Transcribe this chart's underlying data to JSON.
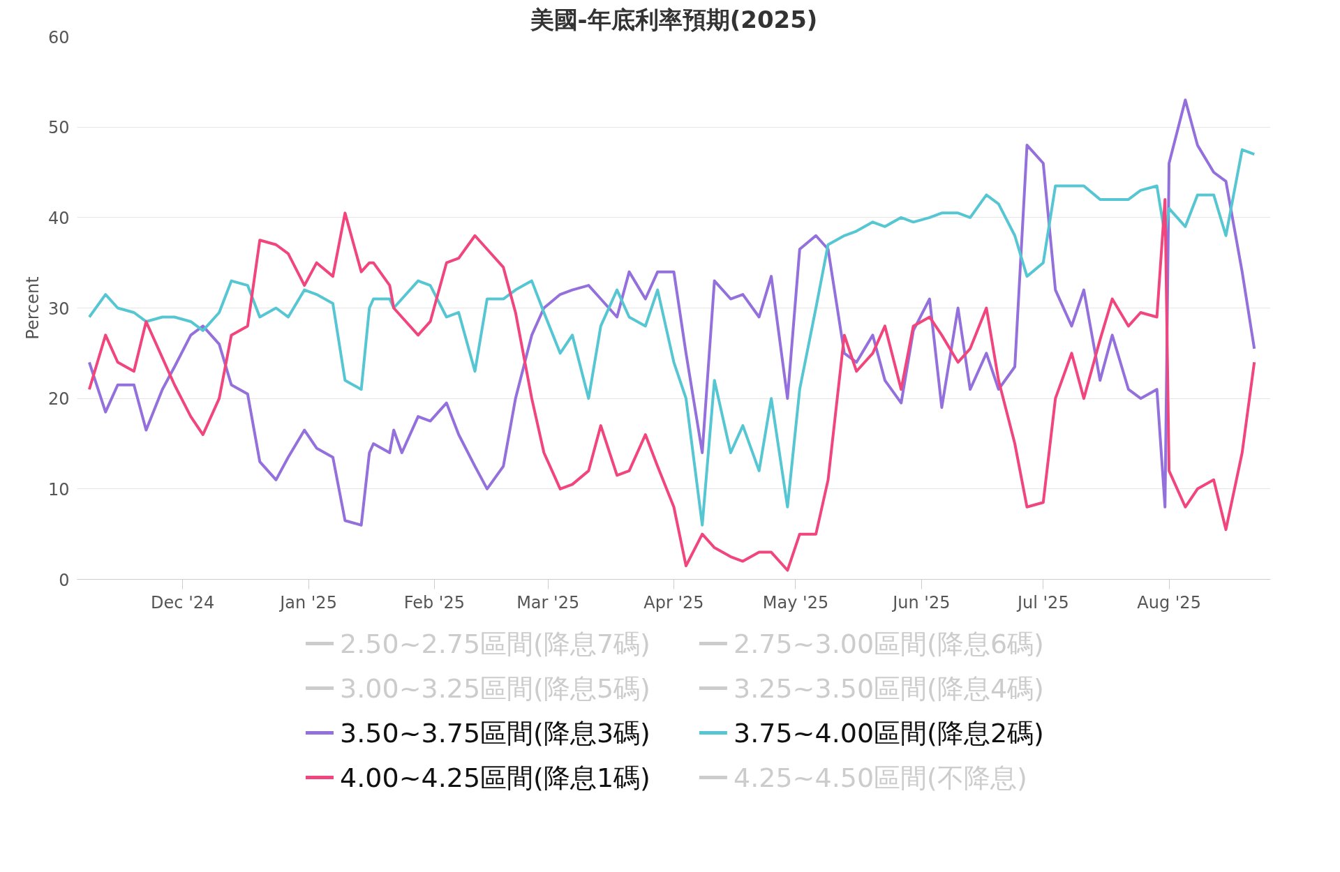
{
  "chart_data": {
    "type": "line",
    "title": "美國-年底利率預期(2025)",
    "ylabel": "Percent",
    "x": [
      "2024-11-08",
      "2024-11-12",
      "2024-11-15",
      "2024-11-19",
      "2024-11-22",
      "2024-11-26",
      "2024-11-29",
      "2024-12-03",
      "2024-12-06",
      "2024-12-10",
      "2024-12-13",
      "2024-12-17",
      "2024-12-20",
      "2024-12-24",
      "2024-12-27",
      "2024-12-31",
      "2025-01-03",
      "2025-01-07",
      "2025-01-10",
      "2025-01-14",
      "2025-01-16",
      "2025-01-17",
      "2025-01-21",
      "2025-01-22",
      "2025-01-24",
      "2025-01-28",
      "2025-01-31",
      "2025-02-04",
      "2025-02-07",
      "2025-02-11",
      "2025-02-14",
      "2025-02-18",
      "2025-02-21",
      "2025-02-25",
      "2025-02-28",
      "2025-03-04",
      "2025-03-07",
      "2025-03-11",
      "2025-03-14",
      "2025-03-18",
      "2025-03-21",
      "2025-03-25",
      "2025-03-28",
      "2025-04-01",
      "2025-04-04",
      "2025-04-08",
      "2025-04-11",
      "2025-04-15",
      "2025-04-18",
      "2025-04-22",
      "2025-04-25",
      "2025-04-29",
      "2025-05-02",
      "2025-05-06",
      "2025-05-09",
      "2025-05-13",
      "2025-05-16",
      "2025-05-20",
      "2025-05-23",
      "2025-05-27",
      "2025-05-30",
      "2025-06-03",
      "2025-06-06",
      "2025-06-10",
      "2025-06-13",
      "2025-06-17",
      "2025-06-20",
      "2025-06-24",
      "2025-06-27",
      "2025-07-01",
      "2025-07-04",
      "2025-07-08",
      "2025-07-11",
      "2025-07-15",
      "2025-07-18",
      "2025-07-22",
      "2025-07-25",
      "2025-07-29",
      "2025-07-31",
      "2025-08-01",
      "2025-08-05",
      "2025-08-08",
      "2025-08-12",
      "2025-08-15",
      "2025-08-19",
      "2025-08-22"
    ],
    "series": [
      {
        "name": "2.50~2.75區間(降息7碼)",
        "color": "#cccccc",
        "values": [
          null,
          null,
          null,
          null,
          null,
          null,
          null,
          null,
          null,
          null,
          null,
          null,
          null,
          null,
          null,
          null,
          null,
          null,
          null,
          null,
          null,
          null,
          null,
          null,
          null,
          null,
          null,
          null,
          null,
          null,
          null,
          null,
          null,
          null,
          null,
          null,
          null,
          null,
          null,
          null,
          null,
          null,
          null,
          null,
          null,
          null,
          null,
          null,
          null,
          null,
          null,
          null,
          null,
          null,
          null,
          null,
          null,
          null,
          null,
          null,
          null,
          null,
          null,
          null,
          null,
          null,
          null,
          null,
          null,
          null,
          null,
          null,
          null,
          null,
          null,
          null,
          null,
          null,
          null,
          null,
          null,
          null,
          null,
          null,
          null,
          null
        ]
      },
      {
        "name": "2.75~3.00區間(降息6碼)",
        "color": "#cccccc",
        "values": [
          null,
          null,
          null,
          null,
          null,
          null,
          null,
          null,
          null,
          null,
          null,
          null,
          null,
          null,
          null,
          null,
          null,
          null,
          null,
          null,
          null,
          null,
          null,
          null,
          null,
          null,
          null,
          null,
          null,
          null,
          null,
          null,
          null,
          null,
          null,
          null,
          null,
          null,
          null,
          null,
          null,
          null,
          null,
          null,
          null,
          null,
          null,
          null,
          null,
          null,
          null,
          null,
          null,
          null,
          null,
          null,
          null,
          null,
          null,
          null,
          null,
          null,
          null,
          null,
          null,
          null,
          null,
          null,
          null,
          null,
          null,
          null,
          null,
          null,
          null,
          null,
          null,
          null,
          null,
          null,
          null,
          null,
          null,
          null,
          null,
          null
        ]
      },
      {
        "name": "3.00~3.25區間(降息5碼)",
        "color": "#cccccc",
        "values": [
          null,
          null,
          null,
          null,
          null,
          null,
          null,
          null,
          null,
          null,
          null,
          null,
          null,
          null,
          null,
          null,
          null,
          null,
          null,
          null,
          null,
          null,
          null,
          null,
          null,
          null,
          null,
          null,
          null,
          null,
          null,
          null,
          null,
          null,
          null,
          null,
          null,
          null,
          null,
          null,
          null,
          null,
          null,
          null,
          null,
          null,
          null,
          null,
          null,
          null,
          null,
          null,
          null,
          null,
          null,
          null,
          null,
          null,
          null,
          null,
          null,
          null,
          null,
          null,
          null,
          null,
          null,
          null,
          null,
          null,
          null,
          null,
          null,
          null,
          null,
          null,
          null,
          null,
          null,
          null,
          null,
          null,
          null,
          null,
          null,
          null
        ]
      },
      {
        "name": "3.25~3.50區間(降息4碼)",
        "color": "#cccccc",
        "values": [
          null,
          null,
          null,
          null,
          null,
          null,
          null,
          null,
          null,
          null,
          null,
          null,
          null,
          null,
          null,
          null,
          null,
          null,
          null,
          null,
          null,
          null,
          null,
          null,
          null,
          null,
          null,
          null,
          null,
          null,
          null,
          null,
          null,
          null,
          null,
          null,
          null,
          null,
          null,
          null,
          null,
          null,
          null,
          null,
          null,
          null,
          null,
          null,
          null,
          null,
          null,
          null,
          null,
          null,
          null,
          null,
          null,
          null,
          null,
          null,
          null,
          null,
          null,
          null,
          null,
          null,
          null,
          null,
          null,
          null,
          null,
          null,
          null,
          null,
          null,
          null,
          null,
          null,
          null,
          null,
          null,
          null,
          null,
          null,
          null,
          null
        ]
      },
      {
        "name": "3.50~3.75區間(降息3碼)",
        "color": "#9370db",
        "values": [
          24,
          18.5,
          21.5,
          21.5,
          16.5,
          21,
          23.5,
          27,
          28,
          26,
          21.5,
          20.5,
          13,
          11,
          13.5,
          16.5,
          14.5,
          13.5,
          6.5,
          6,
          14,
          15,
          14,
          16.5,
          14,
          18,
          17.5,
          19.5,
          16,
          12.5,
          10,
          12.5,
          20,
          27,
          30,
          31.5,
          32,
          32.5,
          31,
          29,
          34,
          31,
          34,
          34,
          25,
          14,
          33,
          31,
          31.5,
          29,
          33.5,
          20,
          36.5,
          38,
          36.5,
          25,
          24,
          27,
          22,
          19.5,
          27.5,
          31,
          19,
          30,
          21,
          25,
          21,
          23.5,
          48,
          46,
          32,
          28,
          32,
          22,
          27,
          21,
          20,
          21,
          8,
          46,
          53,
          48,
          45,
          44,
          34,
          25.5
        ]
      },
      {
        "name": "3.75~4.00區間(降息2碼)",
        "color": "#55c6d2",
        "values": [
          29,
          31.5,
          30,
          29.5,
          28.5,
          29,
          29,
          28.5,
          27.5,
          29.5,
          33,
          32.5,
          29,
          30,
          29,
          32,
          31.5,
          30.5,
          22,
          21,
          30,
          31,
          31,
          30,
          31,
          33,
          32.5,
          29,
          29.5,
          23,
          31,
          31,
          32,
          33,
          29.5,
          25,
          27,
          20,
          28,
          32,
          29,
          28,
          32,
          24,
          20,
          6,
          22,
          14,
          17,
          12,
          20,
          8,
          21,
          30,
          37,
          38,
          38.5,
          39.5,
          39,
          40,
          39.5,
          40,
          40.5,
          40.5,
          40,
          42.5,
          41.5,
          38,
          33.5,
          35,
          43.5,
          43.5,
          43.5,
          42,
          42,
          42,
          43,
          43.5,
          38,
          41,
          39,
          42.5,
          42.5,
          38,
          47.5,
          47
        ]
      },
      {
        "name": "4.00~4.25區間(降息1碼)",
        "color": "#f0457d",
        "values": [
          21,
          27,
          24,
          23,
          28.5,
          24.5,
          21.5,
          18,
          16,
          20,
          27,
          28,
          37.5,
          37,
          36,
          32.5,
          35,
          33.5,
          40.5,
          34,
          35,
          35,
          32.5,
          30,
          29,
          27,
          28.5,
          35,
          35.5,
          38,
          36.5,
          34.5,
          29.5,
          20,
          14,
          10,
          10.5,
          12,
          17,
          11.5,
          12,
          16,
          12.5,
          8,
          1.5,
          5,
          3.5,
          2.5,
          2,
          3,
          3,
          1,
          5,
          5,
          11,
          27,
          23,
          25,
          28,
          21,
          28,
          29,
          27,
          24,
          25.5,
          30,
          22,
          15,
          8,
          8.5,
          20,
          25,
          20,
          26.5,
          31,
          28,
          29.5,
          29,
          42,
          12,
          8,
          10,
          11,
          5.5,
          14,
          24
        ]
      },
      {
        "name": "4.25~4.50區間(不降息)",
        "color": "#cccccc",
        "values": [
          null,
          null,
          null,
          null,
          null,
          null,
          null,
          null,
          null,
          null,
          null,
          null,
          null,
          null,
          null,
          null,
          null,
          null,
          null,
          null,
          null,
          null,
          null,
          null,
          null,
          null,
          null,
          null,
          null,
          null,
          null,
          null,
          null,
          null,
          null,
          null,
          null,
          null,
          null,
          null,
          null,
          null,
          null,
          null,
          null,
          null,
          null,
          null,
          null,
          null,
          null,
          null,
          null,
          null,
          null,
          null,
          null,
          null,
          null,
          null,
          null,
          null,
          null,
          null,
          null,
          null,
          null,
          null,
          null,
          null,
          null,
          null,
          null,
          null,
          null,
          null,
          null,
          null,
          null,
          null,
          null,
          null,
          null,
          null,
          null,
          null
        ]
      }
    ],
    "xlim": [
      "2024-11-05",
      "2025-08-26"
    ],
    "xticks": [
      {
        "value": "2024-12-01",
        "label": "Dec '24"
      },
      {
        "value": "2025-01-01",
        "label": "Jan '25"
      },
      {
        "value": "2025-02-01",
        "label": "Feb '25"
      },
      {
        "value": "2025-03-01",
        "label": "Mar '25"
      },
      {
        "value": "2025-04-01",
        "label": "Apr '25"
      },
      {
        "value": "2025-05-01",
        "label": "May '25"
      },
      {
        "value": "2025-06-01",
        "label": "Jun '25"
      },
      {
        "value": "2025-07-01",
        "label": "Jul '25"
      },
      {
        "value": "2025-08-01",
        "label": "Aug '25"
      }
    ],
    "ylim": [
      0,
      60
    ],
    "yticks": [
      0,
      10,
      20,
      30,
      40,
      50,
      60
    ],
    "grid": "y",
    "legend": "bottom",
    "marker": "none",
    "line_style": "solid"
  }
}
